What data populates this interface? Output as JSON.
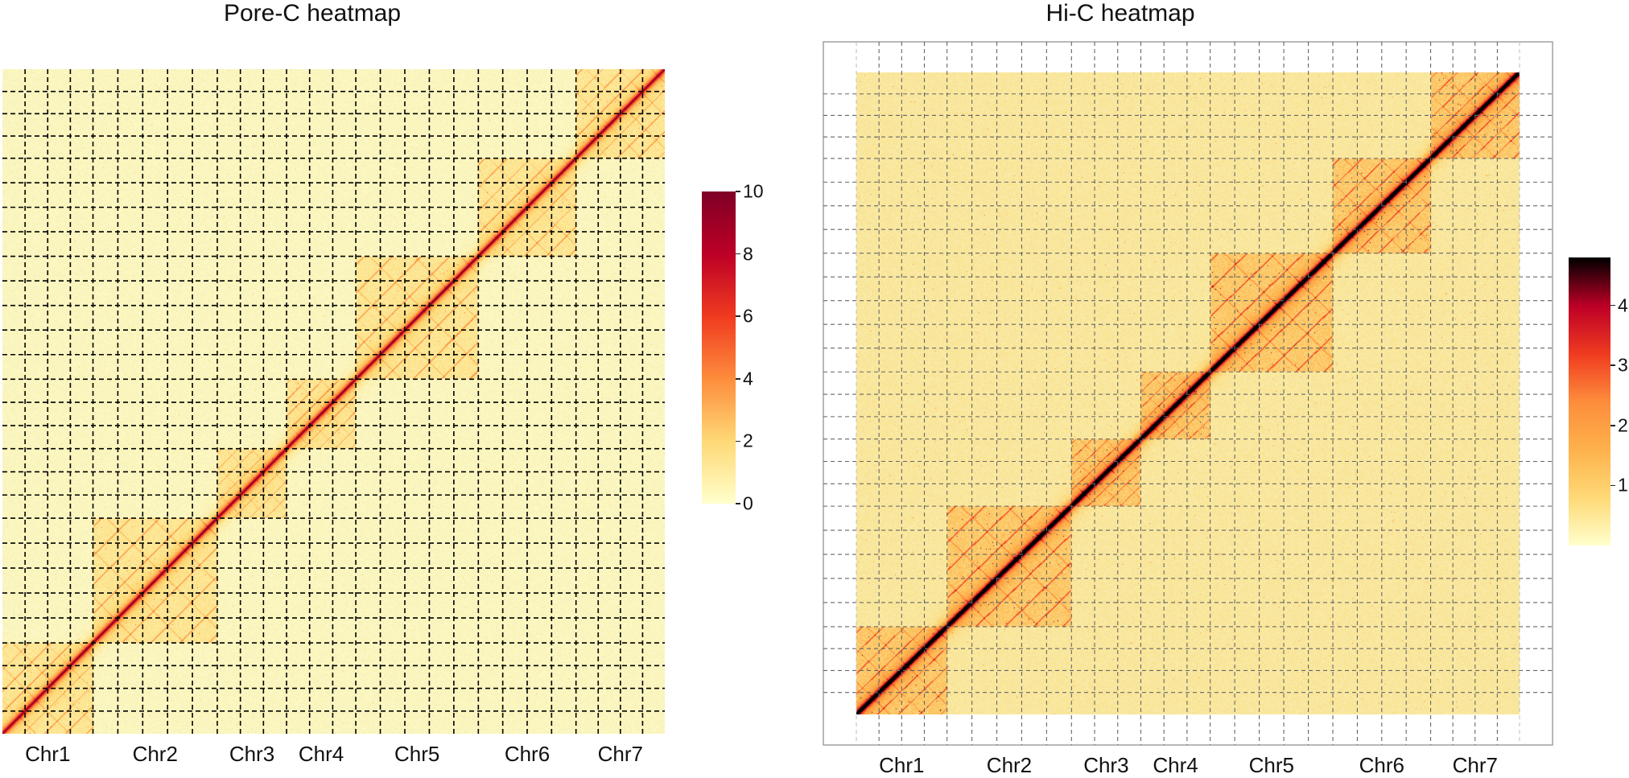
{
  "chart_data": [
    {
      "type": "heatmap",
      "title": "Pore-C heatmap",
      "x_tick_labels": [
        "Chr1",
        "Chr2",
        "Chr3",
        "Chr4",
        "Chr5",
        "Chr6",
        "Chr7"
      ],
      "chromosome_relative_sizes": [
        1.02,
        1.4,
        0.78,
        0.78,
        1.38,
        1.1,
        1.0
      ],
      "bins_per_chromosome": [
        4,
        5,
        3,
        3,
        5,
        4,
        4
      ],
      "grid": "dashed black",
      "colorbar": {
        "range": [
          0,
          10
        ],
        "ticks": [
          0,
          2,
          4,
          6,
          8,
          10
        ],
        "colors": [
          "#ffffcc",
          "#fed976",
          "#fd8d3c",
          "#f03b20",
          "#bd0026",
          "#800026"
        ]
      }
    },
    {
      "type": "heatmap",
      "title": "Hi-C heatmap",
      "x_tick_labels": [
        "Chr1",
        "Chr2",
        "Chr3",
        "Chr4",
        "Chr5",
        "Chr6",
        "Chr7"
      ],
      "chromosome_relative_sizes": [
        1.02,
        1.4,
        0.78,
        0.78,
        1.38,
        1.1,
        1.0
      ],
      "bins_per_chromosome": [
        4,
        5,
        3,
        3,
        5,
        4,
        4
      ],
      "grid": "dashed gray",
      "colorbar": {
        "range": [
          0,
          4.8
        ],
        "ticks": [
          1,
          2,
          3,
          4
        ],
        "colors": [
          "#ffffcc",
          "#fed976",
          "#feb24c",
          "#fd8d3c",
          "#f03b20",
          "#bd0026",
          "#000000"
        ]
      }
    }
  ]
}
